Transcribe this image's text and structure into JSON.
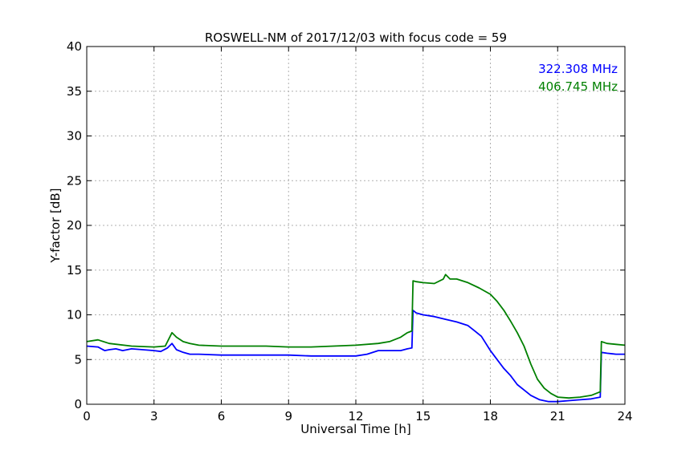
{
  "chart_data": {
    "type": "line",
    "title": "ROSWELL-NM of 2017/12/03 with focus code = 59",
    "xlabel": "Universal Time [h]",
    "ylabel": "Y-factor [dB]",
    "xlim": [
      0,
      24
    ],
    "ylim": [
      0,
      40
    ],
    "xticks": [
      0,
      3,
      6,
      9,
      12,
      15,
      18,
      21,
      24
    ],
    "yticks": [
      0,
      5,
      10,
      15,
      20,
      25,
      30,
      35,
      40
    ],
    "grid": true,
    "legend_position": "top-right",
    "series": [
      {
        "name": "322.308 MHz",
        "color": "#0000ff",
        "x": [
          0,
          0.5,
          0.8,
          1.0,
          1.3,
          1.6,
          2.0,
          2.5,
          3.0,
          3.3,
          3.6,
          3.8,
          4.0,
          4.3,
          4.6,
          5.0,
          6.0,
          7.0,
          8.0,
          9.0,
          10.0,
          11.0,
          12.0,
          12.5,
          13.0,
          14.0,
          14.3,
          14.5,
          14.55,
          14.7,
          15.0,
          15.5,
          16.0,
          16.5,
          17.0,
          17.3,
          17.6,
          17.8,
          18.0,
          18.3,
          18.6,
          18.9,
          19.2,
          19.5,
          19.8,
          20.2,
          20.6,
          21.0,
          21.5,
          22.0,
          22.5,
          22.9,
          22.95,
          23.2,
          23.6,
          24.0
        ],
        "y": [
          6.5,
          6.4,
          6.0,
          6.1,
          6.2,
          6.0,
          6.2,
          6.1,
          6.0,
          5.9,
          6.3,
          6.8,
          6.1,
          5.8,
          5.6,
          5.6,
          5.5,
          5.5,
          5.5,
          5.5,
          5.4,
          5.4,
          5.4,
          5.6,
          6.0,
          6.0,
          6.2,
          6.3,
          10.5,
          10.2,
          10.0,
          9.8,
          9.5,
          9.2,
          8.8,
          8.2,
          7.6,
          6.8,
          6.0,
          5.0,
          4.0,
          3.2,
          2.2,
          1.6,
          1.0,
          0.5,
          0.3,
          0.3,
          0.4,
          0.5,
          0.6,
          0.8,
          5.8,
          5.7,
          5.6,
          5.6
        ]
      },
      {
        "name": "406.745 MHz",
        "color": "#008000",
        "x": [
          0,
          0.5,
          1.0,
          2.0,
          3.0,
          3.5,
          3.8,
          4.0,
          4.3,
          4.6,
          5.0,
          6.0,
          7.0,
          8.0,
          9.0,
          10.0,
          11.0,
          12.0,
          13.0,
          13.5,
          14.0,
          14.3,
          14.5,
          14.55,
          14.7,
          15.0,
          15.5,
          15.9,
          16.0,
          16.2,
          16.5,
          17.0,
          17.5,
          18.0,
          18.3,
          18.6,
          18.9,
          19.2,
          19.5,
          19.8,
          20.1,
          20.4,
          20.7,
          21.0,
          21.5,
          22.0,
          22.5,
          22.9,
          22.95,
          23.2,
          23.6,
          24.0
        ],
        "y": [
          7.0,
          7.2,
          6.8,
          6.5,
          6.4,
          6.5,
          8.0,
          7.5,
          7.0,
          6.8,
          6.6,
          6.5,
          6.5,
          6.5,
          6.4,
          6.4,
          6.5,
          6.6,
          6.8,
          7.0,
          7.5,
          8.0,
          8.2,
          13.8,
          13.7,
          13.6,
          13.5,
          14.0,
          14.5,
          14.0,
          14.0,
          13.6,
          13.0,
          12.3,
          11.5,
          10.5,
          9.3,
          8.0,
          6.5,
          4.5,
          2.8,
          1.8,
          1.2,
          0.8,
          0.7,
          0.8,
          1.0,
          1.4,
          7.0,
          6.8,
          6.7,
          6.6
        ]
      }
    ]
  }
}
